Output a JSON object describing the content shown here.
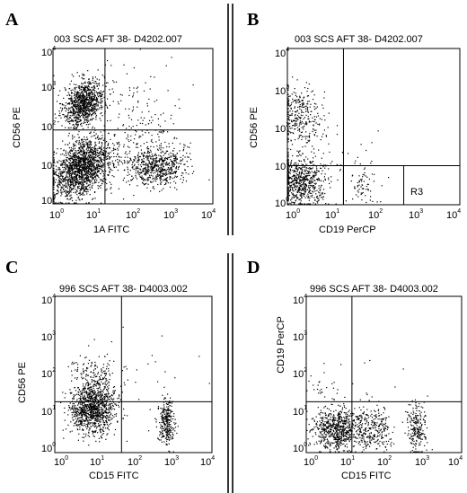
{
  "chart_data": [
    {
      "type": "scatter",
      "panel": "A",
      "header": "003 SCS AFT 38- D4202.007",
      "xlabel": "1A FITC",
      "ylabel": "CD56 PE",
      "xscale": "log",
      "yscale": "log",
      "xlim": [
        1,
        10000
      ],
      "ylim": [
        1,
        10000
      ],
      "tick_base": "10",
      "tick_exponents": [
        "0",
        "1",
        "2",
        "3",
        "4"
      ],
      "quadrant_x": 20,
      "quadrant_y": 80,
      "series": [
        {
          "cx": 6,
          "cy": 400,
          "sx": 0.25,
          "sy": 0.28,
          "rot": 0.35,
          "n": 950
        },
        {
          "cx": 5,
          "cy": 8,
          "sx": 0.35,
          "sy": 0.35,
          "rot": 0.4,
          "n": 1600
        },
        {
          "cx": 400,
          "cy": 9,
          "sx": 0.35,
          "sy": 0.25,
          "rot": 0.0,
          "n": 600
        },
        {
          "cx": 60,
          "cy": 20,
          "sx": 0.7,
          "sy": 0.45,
          "rot": 0.3,
          "n": 250
        },
        {
          "cx": 100,
          "cy": 300,
          "sx": 0.8,
          "sy": 0.6,
          "rot": 0.0,
          "n": 120
        }
      ]
    },
    {
      "type": "scatter",
      "panel": "B",
      "header": "003 SCS AFT 38- D4202.007",
      "xlabel": "CD19 PerCP",
      "ylabel": "CD56 PE",
      "xscale": "log",
      "yscale": "log",
      "xlim": [
        1,
        10000
      ],
      "ylim": [
        1,
        10000
      ],
      "tick_base": "10",
      "tick_exponents": [
        "0",
        "1",
        "2",
        "3",
        "4"
      ],
      "quadrant_x": 20,
      "quadrant_y": 10,
      "gate": {
        "label": "R3",
        "x": [
          20,
          10000
        ],
        "y": [
          1,
          10
        ]
      },
      "series": [
        {
          "cx": 2,
          "cy": 200,
          "sx": 0.25,
          "sy": 0.35,
          "rot": 0.0,
          "n": 300
        },
        {
          "cx": 2,
          "cy": 4,
          "sx": 0.28,
          "sy": 0.3,
          "rot": 0.0,
          "n": 650
        },
        {
          "cx": 60,
          "cy": 3,
          "sx": 0.18,
          "sy": 0.22,
          "rot": 0.0,
          "n": 60
        },
        {
          "cx": 15,
          "cy": 12,
          "sx": 0.5,
          "sy": 0.5,
          "rot": 0.0,
          "n": 60
        }
      ]
    },
    {
      "type": "scatter",
      "panel": "C",
      "header": "996 SCS AFT 38- D4003.002",
      "xlabel": "CD15 FITC",
      "ylabel": "CD56 PE",
      "xscale": "log",
      "yscale": "log",
      "xlim": [
        1,
        10000
      ],
      "ylim": [
        1,
        10000
      ],
      "tick_base": "10",
      "tick_exponents": [
        "0",
        "1",
        "2",
        "3",
        "4"
      ],
      "quadrant_x": 50,
      "quadrant_y": 20,
      "series": [
        {
          "cx": 9,
          "cy": 12,
          "sx": 0.28,
          "sy": 0.3,
          "rot": 0.0,
          "n": 1000
        },
        {
          "cx": 10,
          "cy": 60,
          "sx": 0.3,
          "sy": 0.3,
          "rot": 0.0,
          "n": 250
        },
        {
          "cx": 700,
          "cy": 6,
          "sx": 0.1,
          "sy": 0.3,
          "rot": 0.0,
          "n": 280
        },
        {
          "cx": 100,
          "cy": 100,
          "sx": 0.7,
          "sy": 0.7,
          "rot": 0.0,
          "n": 30
        }
      ]
    },
    {
      "type": "scatter",
      "panel": "D",
      "header": "996 SCS AFT 38- D4003.002",
      "xlabel": "CD15 FITC",
      "ylabel": "CD19 PerCP",
      "xscale": "log",
      "yscale": "log",
      "xlim": [
        1,
        10000
      ],
      "ylim": [
        1,
        10000
      ],
      "tick_base": "10",
      "tick_exponents": [
        "0",
        "1",
        "2",
        "3",
        "4"
      ],
      "quadrant_x": 15,
      "quadrant_y": 20,
      "series": [
        {
          "cx": 6,
          "cy": 4,
          "sx": 0.3,
          "sy": 0.25,
          "rot": 0.0,
          "n": 700
        },
        {
          "cx": 50,
          "cy": 4,
          "sx": 0.25,
          "sy": 0.25,
          "rot": 0.0,
          "n": 280
        },
        {
          "cx": 700,
          "cy": 4,
          "sx": 0.12,
          "sy": 0.3,
          "rot": 0.0,
          "n": 220
        },
        {
          "cx": 2,
          "cy": 50,
          "sx": 0.2,
          "sy": 0.2,
          "rot": 0.0,
          "n": 20
        },
        {
          "cx": 40,
          "cy": 30,
          "sx": 0.8,
          "sy": 0.6,
          "rot": 0.0,
          "n": 25
        }
      ]
    }
  ]
}
